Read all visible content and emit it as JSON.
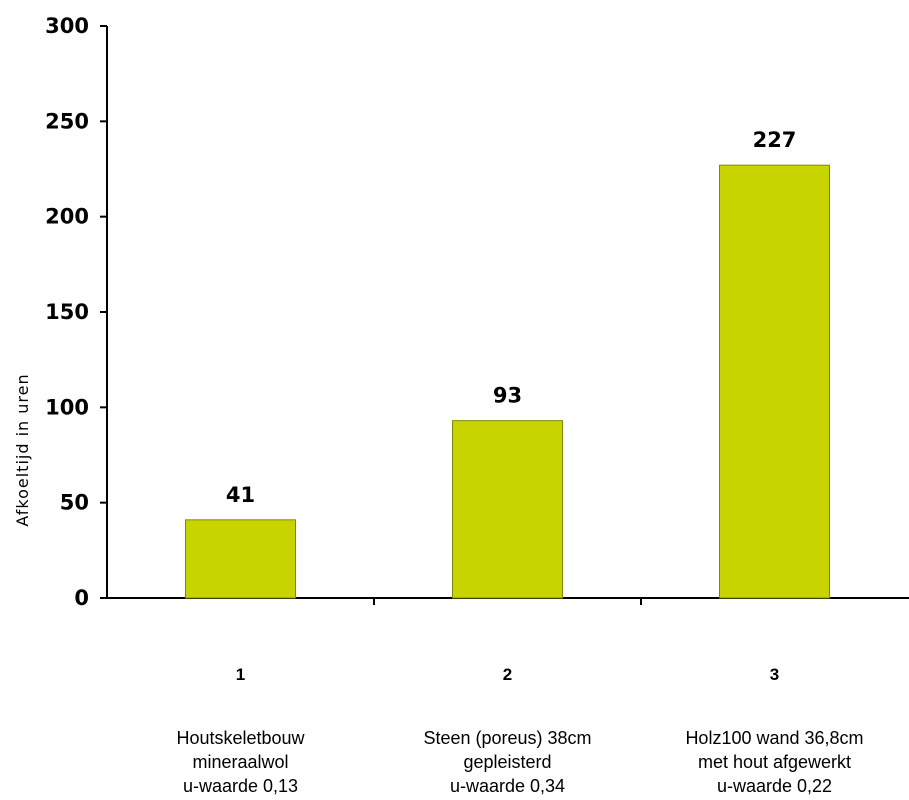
{
  "chart_data": {
    "type": "bar",
    "categories": [
      "1",
      "2",
      "3"
    ],
    "descriptions": [
      [
        "Houtskeletbouw",
        "mineraalwol",
        "u-waarde 0,13"
      ],
      [
        "Steen (poreus) 38cm",
        "gepleisterd",
        "u-waarde 0,34"
      ],
      [
        "Holz100 wand 36,8cm",
        "met hout afgewerkt",
        "u-waarde 0,22"
      ]
    ],
    "values": [
      41,
      93,
      227
    ],
    "data_labels": [
      "41",
      "93",
      "227"
    ],
    "title": "",
    "xlabel": "",
    "ylabel": "Afkoeltijd in uren",
    "ylim": [
      0,
      300
    ],
    "yticks": [
      0,
      50,
      100,
      150,
      200,
      250,
      300
    ],
    "grid": false,
    "legend": "none",
    "colors": {
      "bar_fill": "#c8d400",
      "bar_stroke": "#7d8a00",
      "axis": "#000000"
    }
  }
}
